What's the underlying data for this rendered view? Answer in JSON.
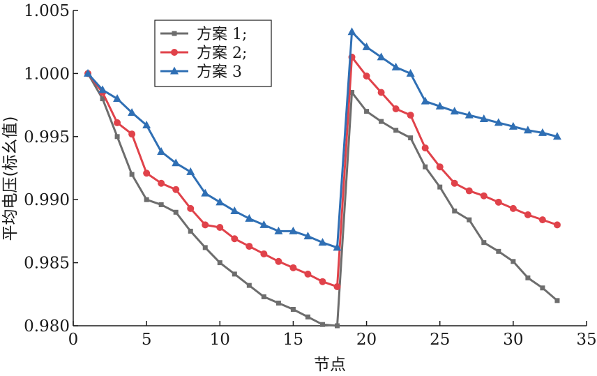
{
  "chart_data": {
    "type": "line",
    "xlabel": "节点",
    "ylabel": "平均电压(标幺值)",
    "xlim": [
      0,
      35
    ],
    "ylim": [
      0.98,
      1.005
    ],
    "xticks": [
      0,
      5,
      10,
      15,
      20,
      25,
      30,
      35
    ],
    "xtick_labels": [
      "0",
      "5",
      "10",
      "15",
      "20",
      "25",
      "30",
      "35"
    ],
    "yticks": [
      0.98,
      0.985,
      0.99,
      0.995,
      1.0,
      1.005
    ],
    "ytick_labels": [
      "0.980",
      "0.985",
      "0.990",
      "0.995",
      "1.000",
      "1.005"
    ],
    "grid": false,
    "legend_position": "top-left",
    "x": [
      1,
      2,
      3,
      4,
      5,
      6,
      7,
      8,
      9,
      10,
      11,
      12,
      13,
      14,
      15,
      16,
      17,
      18,
      19,
      20,
      21,
      22,
      23,
      24,
      25,
      26,
      27,
      28,
      29,
      30,
      31,
      32,
      33
    ],
    "series": [
      {
        "name": "方案 1;",
        "color": "#6d6d6d",
        "marker": "square",
        "values": [
          1.0,
          0.998,
          0.995,
          0.992,
          0.99,
          0.9896,
          0.989,
          0.9875,
          0.9862,
          0.985,
          0.9841,
          0.9832,
          0.9823,
          0.9818,
          0.9813,
          0.9807,
          0.9801,
          0.98,
          0.9985,
          0.997,
          0.9962,
          0.9955,
          0.9949,
          0.9926,
          0.991,
          0.9891,
          0.9884,
          0.9866,
          0.9859,
          0.9851,
          0.9838,
          0.983,
          0.982
        ]
      },
      {
        "name": "方案 2;",
        "color": "#e0424a",
        "marker": "circle",
        "values": [
          1.0,
          0.9985,
          0.9961,
          0.9952,
          0.9921,
          0.9913,
          0.9908,
          0.9893,
          0.988,
          0.9878,
          0.9869,
          0.9863,
          0.9857,
          0.9851,
          0.9846,
          0.9841,
          0.9835,
          0.9831,
          1.0013,
          0.9998,
          0.9985,
          0.9972,
          0.9967,
          0.9941,
          0.9926,
          0.9913,
          0.9907,
          0.9903,
          0.9898,
          0.9893,
          0.9888,
          0.9884,
          0.988
        ]
      },
      {
        "name": "方案 3",
        "color": "#2f6fb4",
        "marker": "triangle",
        "values": [
          1.0,
          0.9987,
          0.998,
          0.9969,
          0.9959,
          0.9938,
          0.9929,
          0.9922,
          0.9905,
          0.9898,
          0.9891,
          0.9885,
          0.988,
          0.9875,
          0.9875,
          0.9871,
          0.9866,
          0.9862,
          1.0033,
          1.0021,
          1.0013,
          1.0005,
          1.0,
          0.9978,
          0.9974,
          0.997,
          0.9967,
          0.9964,
          0.9961,
          0.9958,
          0.9955,
          0.9953,
          0.995
        ]
      }
    ]
  }
}
